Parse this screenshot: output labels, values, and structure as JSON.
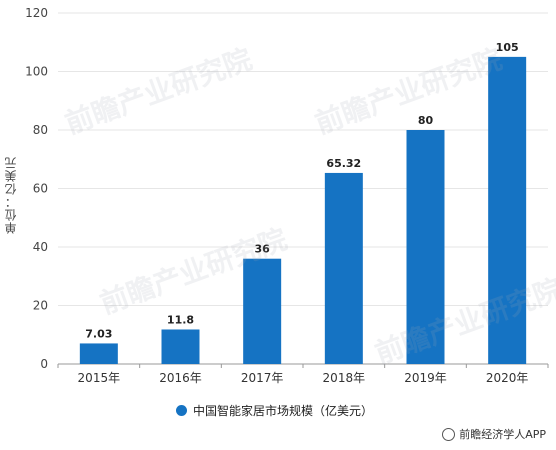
{
  "chart_data": {
    "type": "bar",
    "categories": [
      "2015年",
      "2016年",
      "2017年",
      "2018年",
      "2019年",
      "2020年"
    ],
    "values": [
      7.03,
      11.8,
      36,
      65.32,
      80,
      105
    ],
    "value_labels": [
      "7.03",
      "11.8",
      "36",
      "65.32",
      "80",
      "105"
    ],
    "ylabel": "单位：亿美元",
    "ylim": [
      0,
      120
    ],
    "yticks": [
      0,
      20,
      40,
      60,
      80,
      100,
      120
    ],
    "grid": true,
    "legend": "bottom",
    "series": [
      {
        "name": "中国智能家居市场规模（亿美元）",
        "values": [
          7.03,
          11.8,
          36,
          65.32,
          80,
          105
        ]
      }
    ],
    "colors": {
      "bar": "#1573c3",
      "grid": "#e6e6e6",
      "axis": "#999999"
    }
  },
  "watermark": "前瞻产业研究院",
  "credit": "前瞻经济学人APP"
}
